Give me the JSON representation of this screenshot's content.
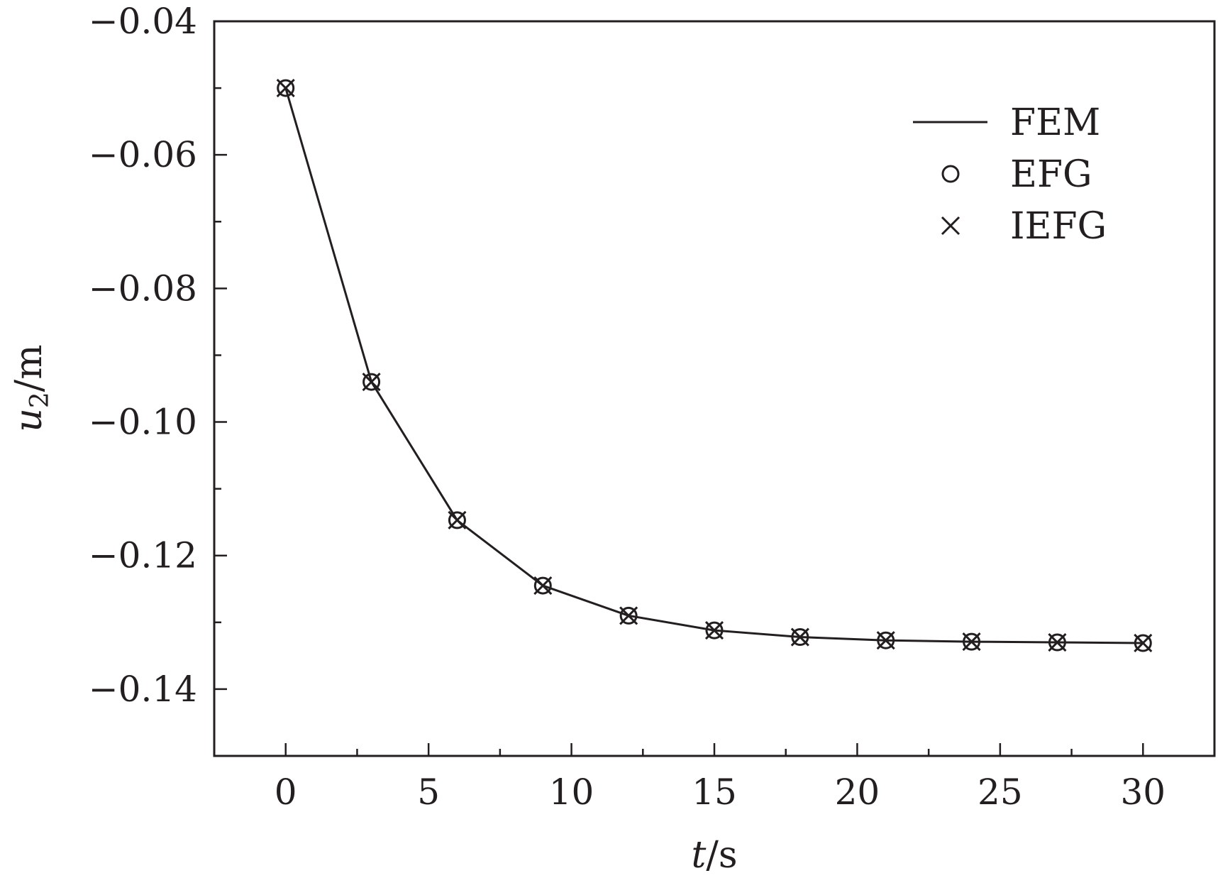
{
  "chart_data": {
    "type": "line",
    "title": "",
    "xlabel": {
      "var": "t",
      "unit": "/s"
    },
    "ylabel": {
      "var": "u",
      "sub": "2",
      "unit": "/m"
    },
    "xlim": [
      -2.5,
      32.5
    ],
    "ylim": [
      -0.15,
      -0.04
    ],
    "x_ticks": [
      0,
      5,
      10,
      15,
      20,
      25,
      30
    ],
    "x_tick_labels": [
      "0",
      "5",
      "10",
      "15",
      "20",
      "25",
      "30"
    ],
    "x_minor_ticks": [
      2.5,
      7.5,
      12.5,
      17.5,
      22.5,
      27.5
    ],
    "y_ticks": [
      -0.04,
      -0.06,
      -0.08,
      -0.1,
      -0.12,
      -0.14
    ],
    "y_tick_labels": [
      "−0.04",
      "−0.06",
      "−0.08",
      "−0.10",
      "−0.12",
      "−0.14"
    ],
    "y_minor_ticks": [
      -0.05,
      -0.07,
      -0.09,
      -0.11,
      -0.13
    ],
    "grid": false,
    "legend_position": "top-right",
    "x": [
      0,
      3,
      6,
      9,
      12,
      15,
      18,
      21,
      24,
      27,
      30
    ],
    "series": [
      {
        "name": "FEM",
        "marker": "line",
        "values": [
          -0.05,
          -0.094,
          -0.1147,
          -0.1245,
          -0.129,
          -0.1312,
          -0.1322,
          -0.1327,
          -0.1329,
          -0.133,
          -0.1331
        ]
      },
      {
        "name": "EFG",
        "marker": "circle",
        "values": [
          -0.05,
          -0.094,
          -0.1147,
          -0.1245,
          -0.129,
          -0.1312,
          -0.1322,
          -0.1327,
          -0.1329,
          -0.133,
          -0.1331
        ]
      },
      {
        "name": "IEFG",
        "marker": "cross",
        "values": [
          -0.05,
          -0.094,
          -0.1147,
          -0.1245,
          -0.129,
          -0.1312,
          -0.1322,
          -0.1327,
          -0.1329,
          -0.133,
          -0.1331
        ]
      }
    ],
    "colors": {
      "ink": "#231f20"
    }
  }
}
